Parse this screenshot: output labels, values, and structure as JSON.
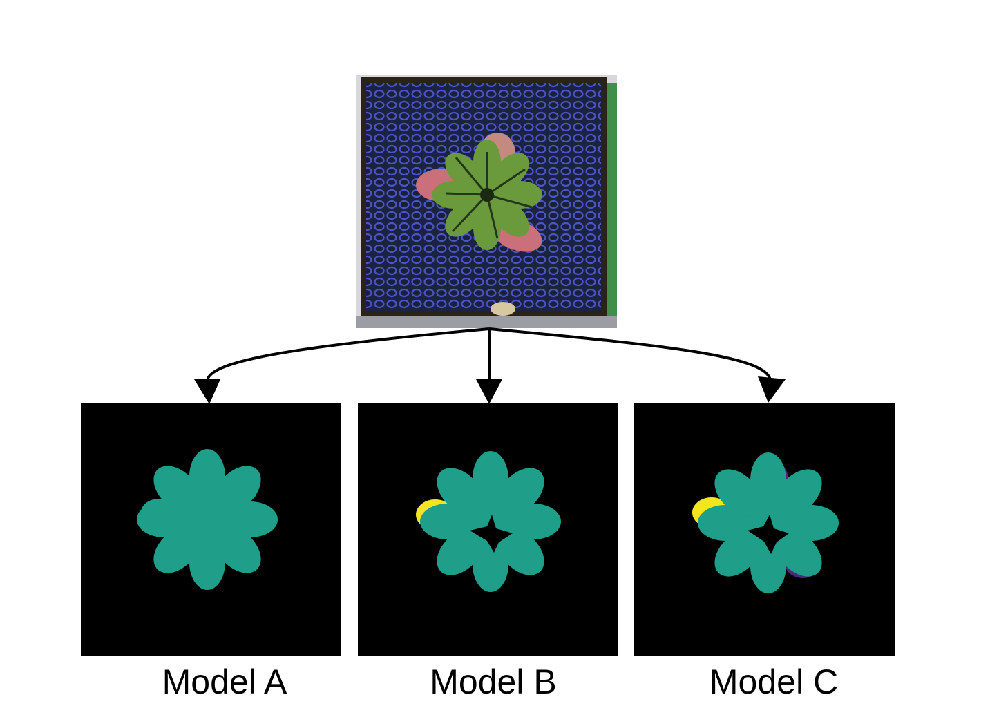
{
  "colors": {
    "background": "#ffffff",
    "mask_bg": "#000000",
    "class_teal": "#1f9e89",
    "class_yellow": "#f3e51e",
    "class_purple": "#472c7b",
    "tray_blue": "#4a55c8",
    "leaf_green": "#6a9a3c",
    "leaf_red": "#c9707a"
  },
  "icons": {
    "input_photo": "plant-rosette-photo",
    "arrows": "arrow-down-icon"
  },
  "models": [
    {
      "id": "a",
      "label": "Model A"
    },
    {
      "id": "b",
      "label": "Model B"
    },
    {
      "id": "c",
      "label": "Model C"
    }
  ]
}
